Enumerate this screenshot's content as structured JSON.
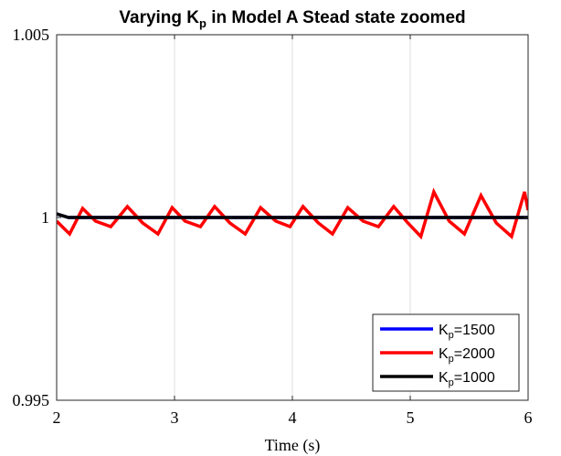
{
  "chart_data": {
    "type": "line",
    "title": {
      "before": "Varying K",
      "sub": "p",
      "after": " in Model A Stead state zoomed"
    },
    "xlabel": "Time (s)",
    "ylabel": "",
    "xlim": [
      2,
      6
    ],
    "ylim": [
      0.995,
      1.005
    ],
    "xticks": [
      "2",
      "3",
      "4",
      "5",
      "6"
    ],
    "yticks": [
      "0.995",
      "1",
      "1.005"
    ],
    "grid": "x",
    "legend_position": "bottom-right",
    "series": [
      {
        "name": "Kp=1500",
        "label_main": "K",
        "label_sub": "p",
        "label_rest": "=1500",
        "color": "#0000ff",
        "x": [
          2.0,
          2.1,
          6.0
        ],
        "y": [
          1.0001,
          1.0,
          1.0
        ]
      },
      {
        "name": "Kp=2000",
        "label_main": "K",
        "label_sub": "p",
        "label_rest": "=2000",
        "color": "#ff0000",
        "x": [
          2.0,
          2.11,
          2.22,
          2.33,
          2.46,
          2.6,
          2.73,
          2.86,
          2.98,
          3.09,
          3.22,
          3.34,
          3.47,
          3.6,
          3.73,
          3.86,
          3.98,
          4.09,
          4.22,
          4.34,
          4.47,
          4.6,
          4.73,
          4.86,
          4.98,
          5.09,
          5.2,
          5.33,
          5.46,
          5.6,
          5.73,
          5.86,
          5.97,
          6.0
        ],
        "y": [
          0.9999,
          0.99955,
          1.00025,
          0.9999,
          0.99975,
          1.0003,
          0.99985,
          0.99955,
          1.00027,
          0.9999,
          0.99975,
          1.0003,
          0.99985,
          0.99955,
          1.00027,
          0.9999,
          0.99975,
          1.0003,
          0.99985,
          0.99955,
          1.00027,
          0.9999,
          0.99975,
          1.0003,
          0.99985,
          0.99948,
          1.0007,
          0.9999,
          0.99955,
          1.0006,
          0.99985,
          0.99948,
          1.0007,
          1.0002
        ]
      },
      {
        "name": "Kp=1000",
        "label_main": "K",
        "label_sub": "p",
        "label_rest": "=1000",
        "color": "#000000",
        "x": [
          2.0,
          2.1,
          6.0
        ],
        "y": [
          1.0001,
          1.0,
          1.0
        ]
      }
    ]
  }
}
